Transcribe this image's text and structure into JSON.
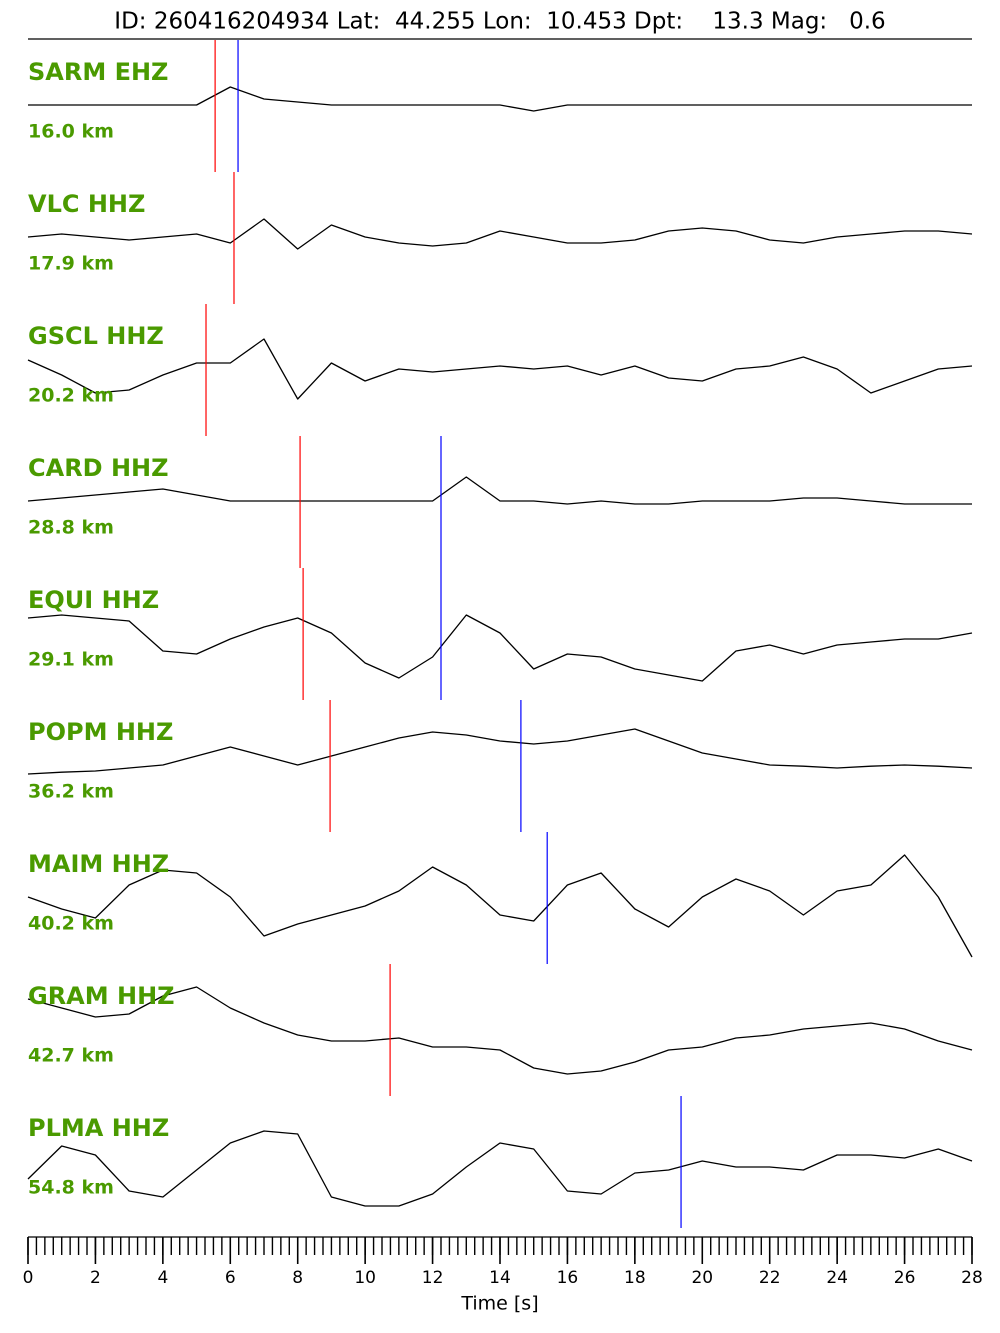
{
  "chart_data": {
    "type": "seismogram",
    "title": "ID: 260416204934 Lat:  44.255 Lon:  10.453 Dpt:    13.3 Mag:   0.6",
    "xlabel": "Time [s]",
    "xlim": [
      0,
      28
    ],
    "xticks": [
      0,
      2,
      4,
      6,
      8,
      10,
      12,
      14,
      16,
      18,
      20,
      22,
      24,
      26,
      28
    ],
    "xminor": 0.25,
    "ylim": [
      -1,
      1
    ],
    "label_color": "#4a9a00",
    "trace_color": "#000000",
    "p_color": "#ff0000",
    "s_color": "#0000ff",
    "x": [
      0,
      1,
      2,
      3,
      4,
      5,
      6,
      7,
      8,
      9,
      10,
      11,
      12,
      13,
      14,
      15,
      16,
      17,
      18,
      19,
      20,
      21,
      22,
      23,
      24,
      25,
      26,
      27,
      28
    ],
    "traces": [
      {
        "name": "SARM EHZ",
        "distance": "16.0 km",
        "p_pick": 5.55,
        "s_pick": 6.23,
        "values": [
          0,
          0,
          0,
          0,
          0,
          0,
          0.3,
          0.1,
          0.05,
          0,
          0,
          0,
          0,
          0,
          0,
          -0.1,
          0,
          0,
          0,
          0,
          0,
          0,
          0,
          0,
          0,
          0,
          0,
          0,
          0
        ]
      },
      {
        "name": "VLC HHZ",
        "distance": "17.9 km",
        "p_pick": 6.11,
        "s_pick": null,
        "values": [
          0,
          0.05,
          0,
          -0.05,
          0,
          0.05,
          -0.1,
          0.3,
          -0.2,
          0.2,
          0,
          -0.1,
          -0.15,
          -0.1,
          0.1,
          0,
          -0.1,
          -0.1,
          -0.05,
          0.1,
          0.15,
          0.1,
          -0.05,
          -0.1,
          0,
          0.05,
          0.1,
          0.1,
          0.05
        ]
      },
      {
        "name": "GSCL HHZ",
        "distance": "20.2 km",
        "p_pick": 5.28,
        "s_pick": null,
        "values": [
          0.15,
          -0.1,
          -0.4,
          -0.35,
          -0.1,
          0.1,
          0.1,
          0.5,
          -0.5,
          0.1,
          -0.2,
          0,
          -0.05,
          0,
          0.05,
          0,
          0.05,
          -0.1,
          0.05,
          -0.15,
          -0.2,
          0,
          0.05,
          0.2,
          0,
          -0.4,
          -0.2,
          0,
          0.05
        ]
      },
      {
        "name": "CARD HHZ",
        "distance": "28.8 km",
        "p_pick": 8.07,
        "s_pick": 12.25,
        "values": [
          0,
          0.05,
          0.1,
          0.15,
          0.2,
          0.1,
          0,
          0,
          0,
          0,
          0,
          0,
          0,
          0.4,
          0,
          0,
          -0.05,
          0,
          -0.05,
          -0.05,
          0,
          0,
          0,
          0.05,
          0.05,
          0,
          -0.05,
          -0.05,
          -0.05
        ]
      },
      {
        "name": "EQUI HHZ",
        "distance": "29.1 km",
        "p_pick": 8.16,
        "s_pick": 12.25,
        "values": [
          0.25,
          0.3,
          0.25,
          0.2,
          -0.3,
          -0.35,
          -0.1,
          0.1,
          0.25,
          0,
          -0.5,
          -0.75,
          -0.4,
          0.3,
          0,
          -0.6,
          -0.35,
          -0.4,
          -0.6,
          -0.7,
          -0.8,
          -0.3,
          -0.2,
          -0.35,
          -0.2,
          -0.15,
          -0.1,
          -0.1,
          0
        ]
      },
      {
        "name": "POPM HHZ",
        "distance": "36.2 km",
        "p_pick": 8.96,
        "s_pick": 14.62,
        "values": [
          -0.15,
          -0.12,
          -0.1,
          -0.05,
          0,
          0.15,
          0.3,
          0.15,
          0,
          0.15,
          0.3,
          0.45,
          0.55,
          0.5,
          0.4,
          0.35,
          0.4,
          0.5,
          0.6,
          0.4,
          0.2,
          0.1,
          0,
          -0.02,
          -0.05,
          -0.02,
          0,
          -0.02,
          -0.05
        ]
      },
      {
        "name": "MAIM HHZ",
        "distance": "40.2 km",
        "p_pick": null,
        "s_pick": 15.4,
        "values": [
          0,
          -0.2,
          -0.35,
          0.2,
          0.45,
          0.4,
          0,
          -0.65,
          -0.45,
          -0.3,
          -0.15,
          0.1,
          0.5,
          0.2,
          -0.3,
          -0.4,
          0.2,
          0.4,
          -0.2,
          -0.5,
          0,
          0.3,
          0.1,
          -0.3,
          0.1,
          0.2,
          0.7,
          0,
          -1.0
        ]
      },
      {
        "name": "GRAM HHZ",
        "distance": "42.7 km",
        "p_pick": 10.74,
        "s_pick": null,
        "values": [
          0.5,
          0.35,
          0.2,
          0.25,
          0.55,
          0.7,
          0.35,
          0.1,
          -0.1,
          -0.2,
          -0.2,
          -0.15,
          -0.3,
          -0.3,
          -0.35,
          -0.65,
          -0.75,
          -0.7,
          -0.55,
          -0.35,
          -0.3,
          -0.15,
          -0.1,
          0,
          0.05,
          0.1,
          0,
          -0.2,
          -0.35
        ]
      },
      {
        "name": "PLMA HHZ",
        "distance": "54.8 km",
        "p_pick": null,
        "s_pick": 19.37,
        "values": [
          -0.3,
          0.25,
          0.1,
          -0.5,
          -0.6,
          -0.15,
          0.3,
          0.5,
          0.45,
          -0.6,
          -0.75,
          -0.75,
          -0.55,
          -0.1,
          0.3,
          0.2,
          -0.5,
          -0.55,
          -0.2,
          -0.15,
          0,
          -0.1,
          -0.1,
          -0.15,
          0.1,
          0.1,
          0.05,
          0.2,
          0
        ]
      }
    ]
  }
}
